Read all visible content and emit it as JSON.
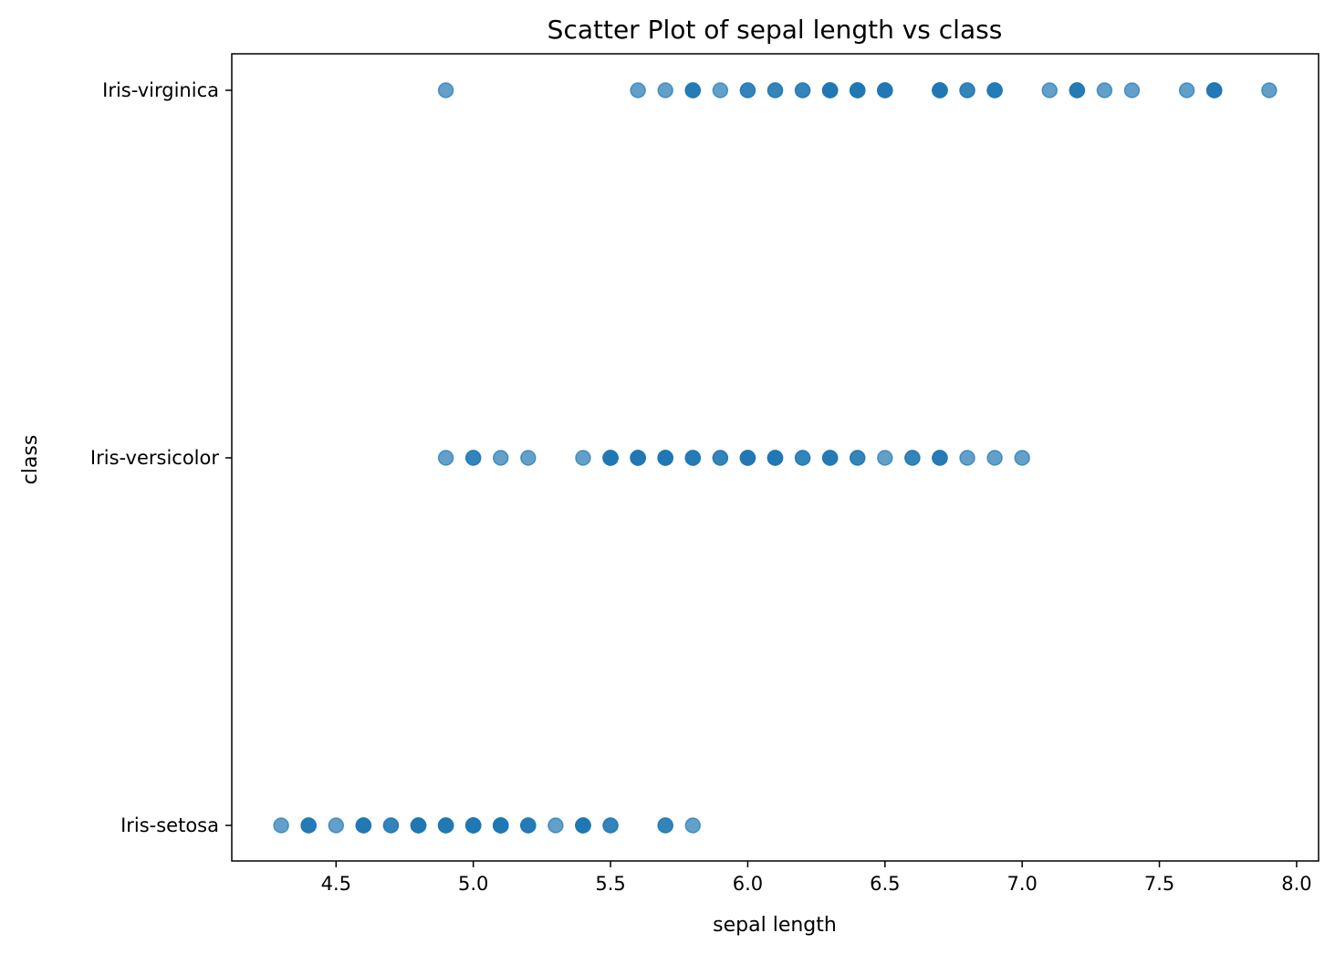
{
  "chart_data": {
    "type": "scatter",
    "title": "Scatter Plot of sepal length vs class",
    "xlabel": "sepal length",
    "ylabel": "class",
    "xlim": [
      4.12,
      8.08
    ],
    "x_ticks": [
      "4.5",
      "5.0",
      "5.5",
      "6.0",
      "6.5",
      "7.0",
      "7.5",
      "8.0"
    ],
    "x_tick_values": [
      4.5,
      5.0,
      5.5,
      6.0,
      6.5,
      7.0,
      7.5,
      8.0
    ],
    "categories": [
      "Iris-setosa",
      "Iris-versicolor",
      "Iris-virginica"
    ],
    "grid": false,
    "marker_color": "#1f77b4",
    "marker_opacity": 0.7,
    "series": [
      {
        "category": "Iris-setosa",
        "x": [
          4.3,
          4.4,
          4.4,
          4.4,
          4.5,
          4.6,
          4.6,
          4.6,
          4.6,
          4.7,
          4.7,
          4.8,
          4.8,
          4.8,
          4.8,
          4.8,
          4.9,
          4.9,
          4.9,
          4.9,
          5.0,
          5.0,
          5.0,
          5.0,
          5.0,
          5.0,
          5.0,
          5.0,
          5.1,
          5.1,
          5.1,
          5.1,
          5.1,
          5.1,
          5.1,
          5.1,
          5.1,
          5.2,
          5.2,
          5.2,
          5.3,
          5.4,
          5.4,
          5.4,
          5.4,
          5.4,
          5.5,
          5.5,
          5.7,
          5.7,
          5.8
        ]
      },
      {
        "category": "Iris-versicolor",
        "x": [
          4.9,
          5.0,
          5.0,
          5.1,
          5.2,
          5.4,
          5.5,
          5.5,
          5.5,
          5.5,
          5.5,
          5.6,
          5.6,
          5.6,
          5.6,
          5.6,
          5.7,
          5.7,
          5.7,
          5.7,
          5.7,
          5.8,
          5.8,
          5.8,
          5.9,
          5.9,
          6.0,
          6.0,
          6.0,
          6.0,
          6.1,
          6.1,
          6.1,
          6.1,
          6.2,
          6.2,
          6.3,
          6.3,
          6.3,
          6.4,
          6.4,
          6.5,
          6.6,
          6.6,
          6.7,
          6.7,
          6.7,
          6.8,
          6.9,
          7.0
        ]
      },
      {
        "category": "Iris-virginica",
        "x": [
          4.9,
          5.6,
          5.7,
          5.8,
          5.8,
          5.8,
          5.9,
          6.0,
          6.0,
          6.1,
          6.1,
          6.2,
          6.2,
          6.3,
          6.3,
          6.3,
          6.3,
          6.3,
          6.3,
          6.4,
          6.4,
          6.4,
          6.4,
          6.4,
          6.5,
          6.5,
          6.5,
          6.5,
          6.7,
          6.7,
          6.7,
          6.7,
          6.7,
          6.8,
          6.8,
          6.9,
          6.9,
          6.9,
          7.1,
          7.2,
          7.2,
          7.2,
          7.3,
          7.4,
          7.6,
          7.7,
          7.7,
          7.7,
          7.7,
          7.9
        ]
      }
    ]
  }
}
